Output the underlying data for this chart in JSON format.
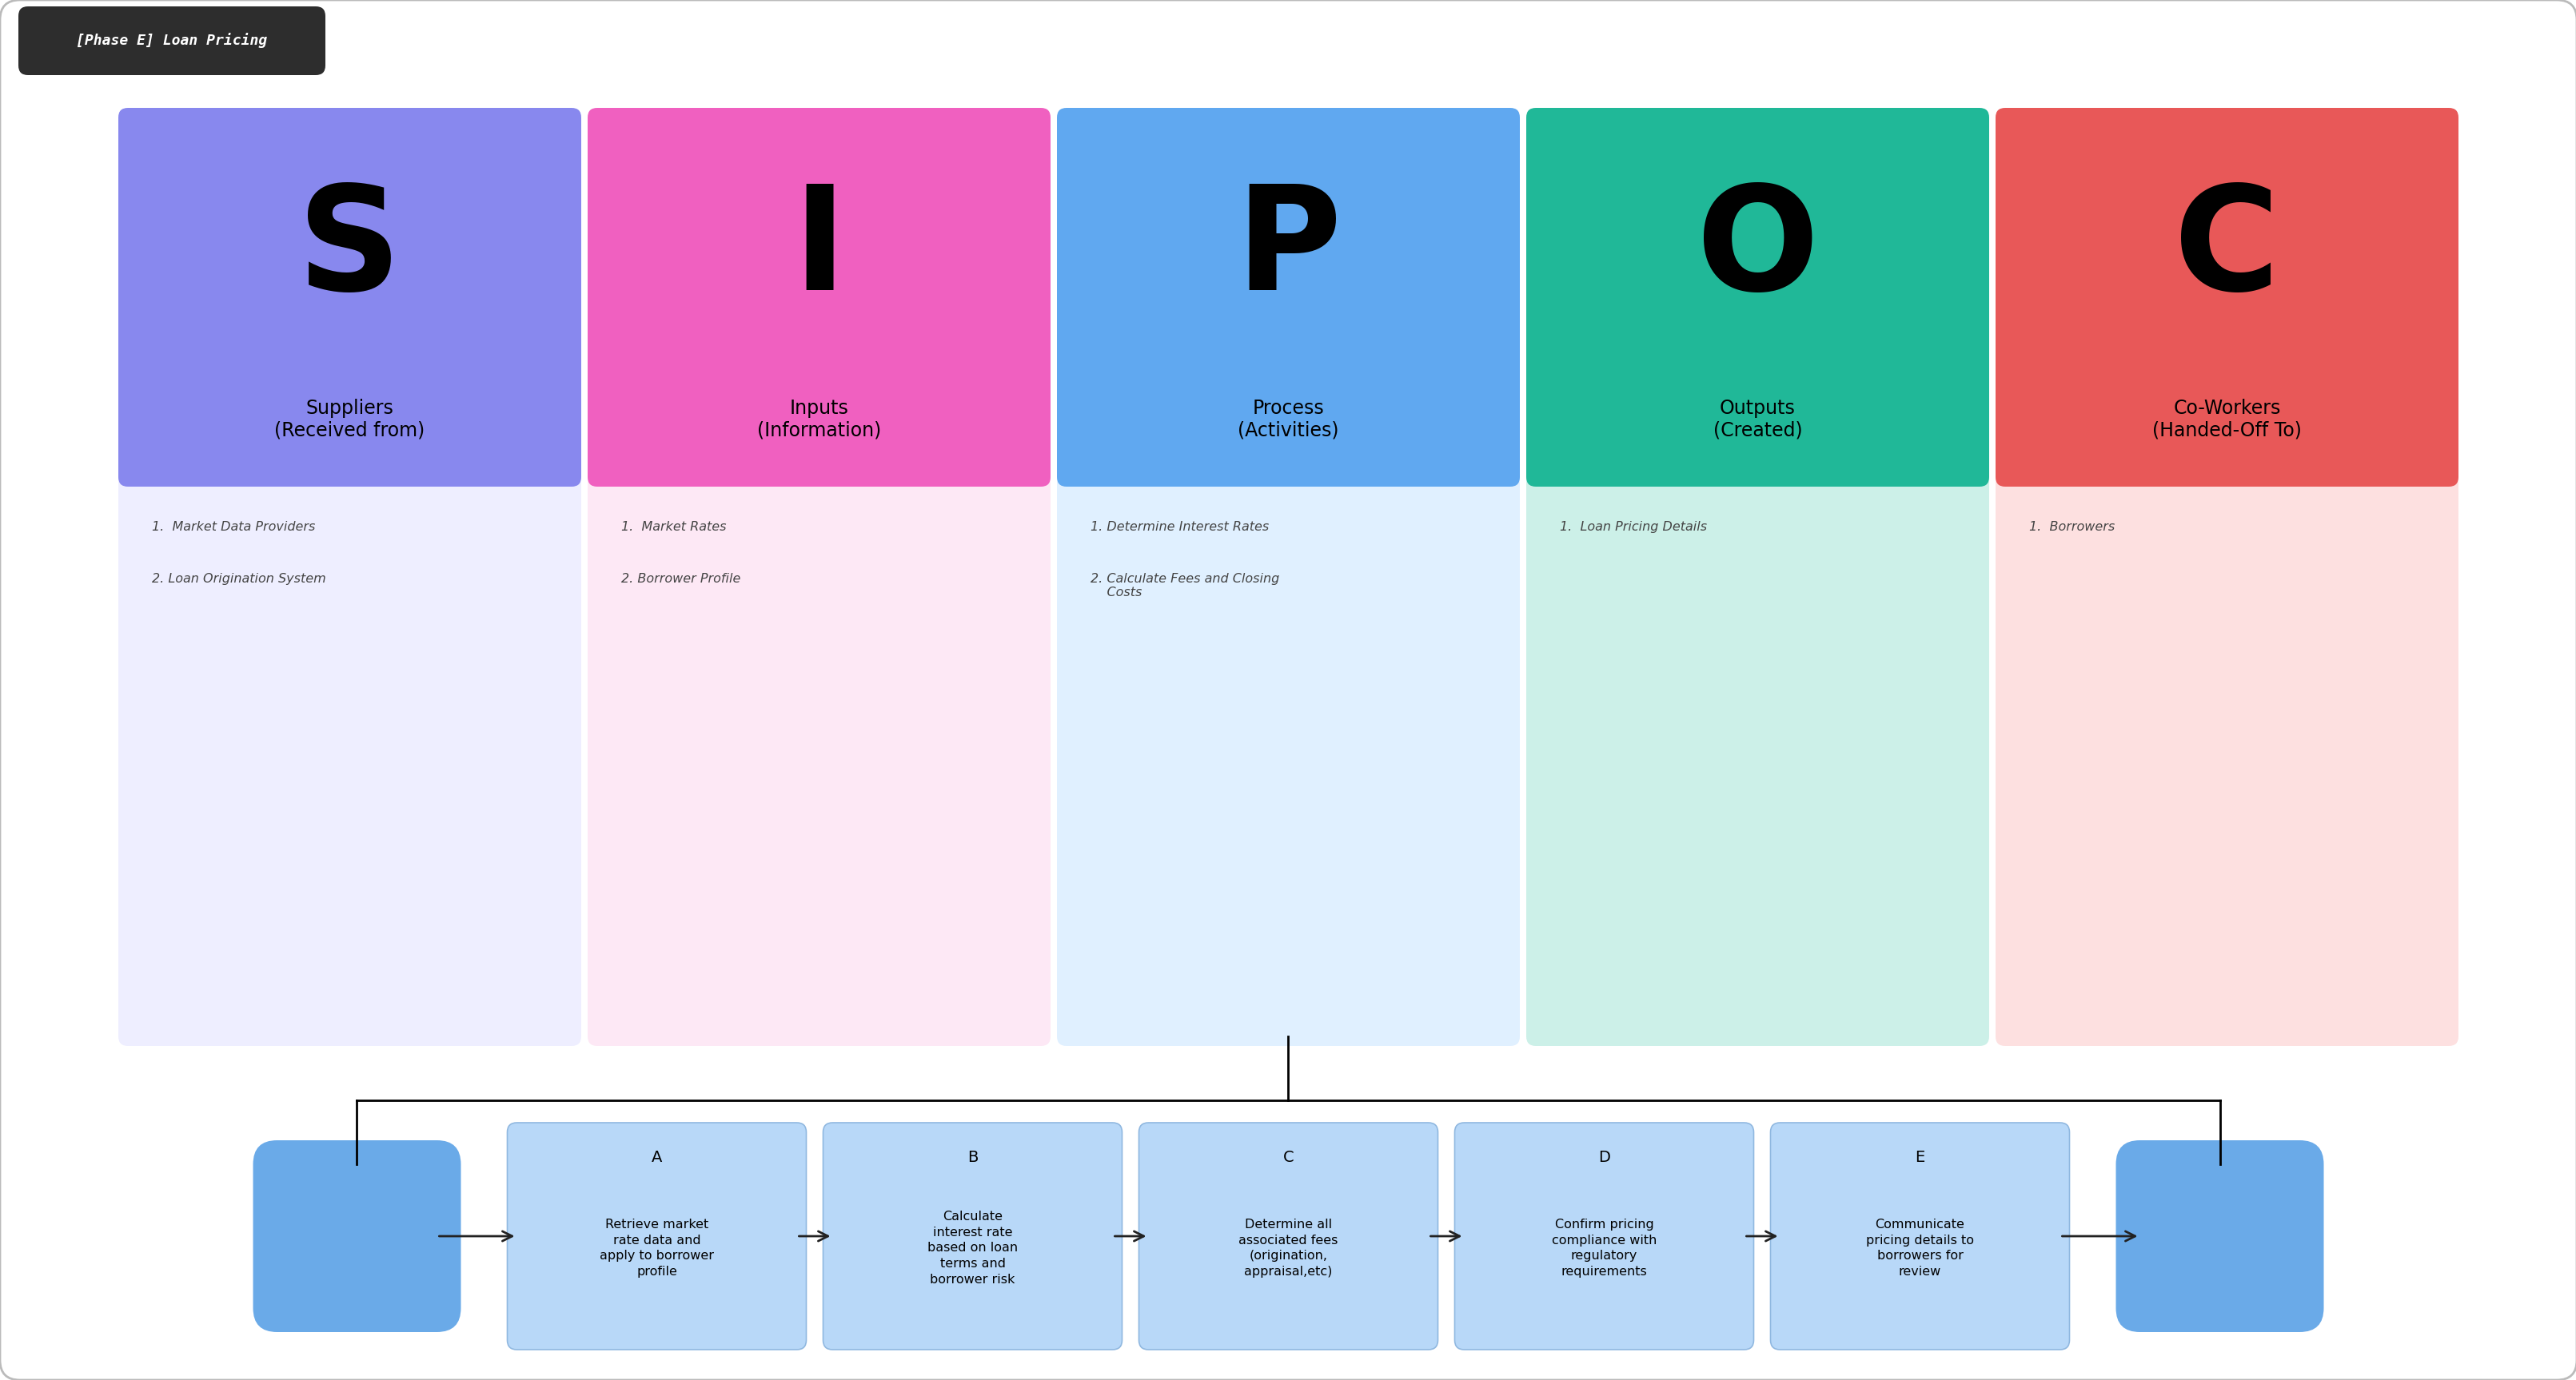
{
  "title": "[Phase E] Loan Pricing",
  "background_color": "#ffffff",
  "sipoc_columns": [
    {
      "letter": "S",
      "header": "Suppliers\n(Received from)",
      "header_color": "#8888ee",
      "body_color": "#eeeeff",
      "items": [
        "1.  Market Data Providers",
        "2. Loan Origination System"
      ]
    },
    {
      "letter": "I",
      "header": "Inputs\n(Information)",
      "header_color": "#f060c0",
      "body_color": "#fde8f5",
      "items": [
        "1.  Market Rates",
        "2. Borrower Profile"
      ]
    },
    {
      "letter": "P",
      "header": "Process\n(Activities)",
      "header_color": "#60a8f0",
      "body_color": "#e0f0ff",
      "items": [
        "1. Determine Interest Rates",
        "2. Calculate Fees and Closing\n    Costs"
      ]
    },
    {
      "letter": "O",
      "header": "Outputs\n(Created)",
      "header_color": "#20b898",
      "body_color": "#ccf0e8",
      "items": [
        "1.  Loan Pricing Details"
      ]
    },
    {
      "letter": "C",
      "header": "Co-Workers\n(Handed-Off To)",
      "header_color": "#e85858",
      "body_color": "#fde0e0",
      "items": [
        "1.  Borrowers"
      ]
    }
  ],
  "workflow_steps": [
    {
      "label": "A",
      "text": "Retrieve market\nrate data and\napply to borrower\nprofile"
    },
    {
      "label": "B",
      "text": "Calculate\ninterest rate\nbased on loan\nterms and\nborrower risk"
    },
    {
      "label": "C",
      "text": "Determine all\nassociated fees\n(origination,\nappraisal,etc)"
    },
    {
      "label": "D",
      "text": "Confirm pricing\ncompliance with\nregulatory\nrequirements"
    },
    {
      "label": "E",
      "text": "Communicate\npricing details to\nborrowers for\nreview"
    }
  ],
  "step_color": "#b8d8f8",
  "step_border_color": "#90b8e0",
  "oval_color": "#6aaae8",
  "arrow_color": "#222222",
  "title_bg_color": "#2d2d2d",
  "title_text_color": "#ffffff",
  "outer_border_color": "#bbbbbb"
}
